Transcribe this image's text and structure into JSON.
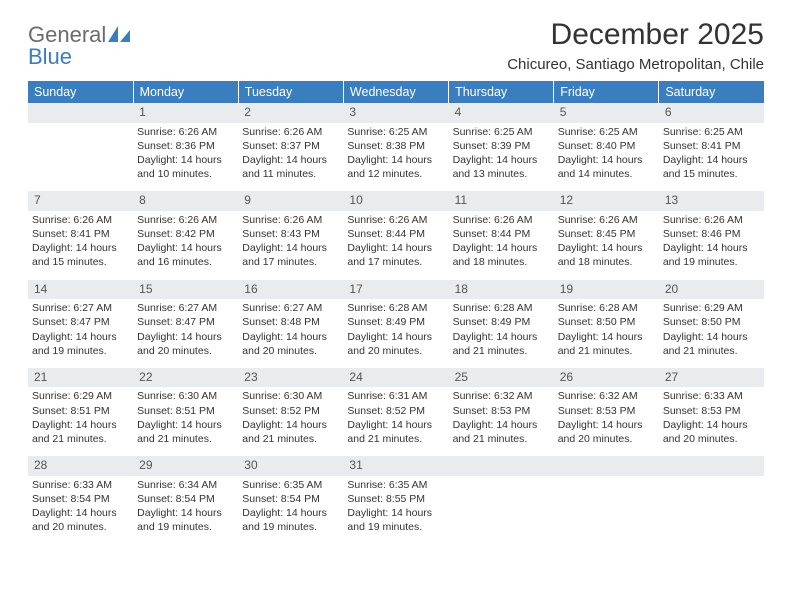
{
  "logo": {
    "part1": "General",
    "part2": "Blue"
  },
  "title": "December 2025",
  "location": "Chicureo, Santiago Metropolitan, Chile",
  "colors": {
    "header_bg": "#3a7ebf",
    "header_text": "#ffffff",
    "daynum_bg": "#e8ecef",
    "text": "#333333",
    "logo_gray": "#6b6b6b",
    "logo_blue": "#3a7ebf"
  },
  "weekdays": [
    "Sunday",
    "Monday",
    "Tuesday",
    "Wednesday",
    "Thursday",
    "Friday",
    "Saturday"
  ],
  "weeks": [
    {
      "nums": [
        "",
        "1",
        "2",
        "3",
        "4",
        "5",
        "6"
      ],
      "cells": [
        null,
        {
          "sunrise": "Sunrise: 6:26 AM",
          "sunset": "Sunset: 8:36 PM",
          "day1": "Daylight: 14 hours",
          "day2": "and 10 minutes."
        },
        {
          "sunrise": "Sunrise: 6:26 AM",
          "sunset": "Sunset: 8:37 PM",
          "day1": "Daylight: 14 hours",
          "day2": "and 11 minutes."
        },
        {
          "sunrise": "Sunrise: 6:25 AM",
          "sunset": "Sunset: 8:38 PM",
          "day1": "Daylight: 14 hours",
          "day2": "and 12 minutes."
        },
        {
          "sunrise": "Sunrise: 6:25 AM",
          "sunset": "Sunset: 8:39 PM",
          "day1": "Daylight: 14 hours",
          "day2": "and 13 minutes."
        },
        {
          "sunrise": "Sunrise: 6:25 AM",
          "sunset": "Sunset: 8:40 PM",
          "day1": "Daylight: 14 hours",
          "day2": "and 14 minutes."
        },
        {
          "sunrise": "Sunrise: 6:25 AM",
          "sunset": "Sunset: 8:41 PM",
          "day1": "Daylight: 14 hours",
          "day2": "and 15 minutes."
        }
      ]
    },
    {
      "nums": [
        "7",
        "8",
        "9",
        "10",
        "11",
        "12",
        "13"
      ],
      "cells": [
        {
          "sunrise": "Sunrise: 6:26 AM",
          "sunset": "Sunset: 8:41 PM",
          "day1": "Daylight: 14 hours",
          "day2": "and 15 minutes."
        },
        {
          "sunrise": "Sunrise: 6:26 AM",
          "sunset": "Sunset: 8:42 PM",
          "day1": "Daylight: 14 hours",
          "day2": "and 16 minutes."
        },
        {
          "sunrise": "Sunrise: 6:26 AM",
          "sunset": "Sunset: 8:43 PM",
          "day1": "Daylight: 14 hours",
          "day2": "and 17 minutes."
        },
        {
          "sunrise": "Sunrise: 6:26 AM",
          "sunset": "Sunset: 8:44 PM",
          "day1": "Daylight: 14 hours",
          "day2": "and 17 minutes."
        },
        {
          "sunrise": "Sunrise: 6:26 AM",
          "sunset": "Sunset: 8:44 PM",
          "day1": "Daylight: 14 hours",
          "day2": "and 18 minutes."
        },
        {
          "sunrise": "Sunrise: 6:26 AM",
          "sunset": "Sunset: 8:45 PM",
          "day1": "Daylight: 14 hours",
          "day2": "and 18 minutes."
        },
        {
          "sunrise": "Sunrise: 6:26 AM",
          "sunset": "Sunset: 8:46 PM",
          "day1": "Daylight: 14 hours",
          "day2": "and 19 minutes."
        }
      ]
    },
    {
      "nums": [
        "14",
        "15",
        "16",
        "17",
        "18",
        "19",
        "20"
      ],
      "cells": [
        {
          "sunrise": "Sunrise: 6:27 AM",
          "sunset": "Sunset: 8:47 PM",
          "day1": "Daylight: 14 hours",
          "day2": "and 19 minutes."
        },
        {
          "sunrise": "Sunrise: 6:27 AM",
          "sunset": "Sunset: 8:47 PM",
          "day1": "Daylight: 14 hours",
          "day2": "and 20 minutes."
        },
        {
          "sunrise": "Sunrise: 6:27 AM",
          "sunset": "Sunset: 8:48 PM",
          "day1": "Daylight: 14 hours",
          "day2": "and 20 minutes."
        },
        {
          "sunrise": "Sunrise: 6:28 AM",
          "sunset": "Sunset: 8:49 PM",
          "day1": "Daylight: 14 hours",
          "day2": "and 20 minutes."
        },
        {
          "sunrise": "Sunrise: 6:28 AM",
          "sunset": "Sunset: 8:49 PM",
          "day1": "Daylight: 14 hours",
          "day2": "and 21 minutes."
        },
        {
          "sunrise": "Sunrise: 6:28 AM",
          "sunset": "Sunset: 8:50 PM",
          "day1": "Daylight: 14 hours",
          "day2": "and 21 minutes."
        },
        {
          "sunrise": "Sunrise: 6:29 AM",
          "sunset": "Sunset: 8:50 PM",
          "day1": "Daylight: 14 hours",
          "day2": "and 21 minutes."
        }
      ]
    },
    {
      "nums": [
        "21",
        "22",
        "23",
        "24",
        "25",
        "26",
        "27"
      ],
      "cells": [
        {
          "sunrise": "Sunrise: 6:29 AM",
          "sunset": "Sunset: 8:51 PM",
          "day1": "Daylight: 14 hours",
          "day2": "and 21 minutes."
        },
        {
          "sunrise": "Sunrise: 6:30 AM",
          "sunset": "Sunset: 8:51 PM",
          "day1": "Daylight: 14 hours",
          "day2": "and 21 minutes."
        },
        {
          "sunrise": "Sunrise: 6:30 AM",
          "sunset": "Sunset: 8:52 PM",
          "day1": "Daylight: 14 hours",
          "day2": "and 21 minutes."
        },
        {
          "sunrise": "Sunrise: 6:31 AM",
          "sunset": "Sunset: 8:52 PM",
          "day1": "Daylight: 14 hours",
          "day2": "and 21 minutes."
        },
        {
          "sunrise": "Sunrise: 6:32 AM",
          "sunset": "Sunset: 8:53 PM",
          "day1": "Daylight: 14 hours",
          "day2": "and 21 minutes."
        },
        {
          "sunrise": "Sunrise: 6:32 AM",
          "sunset": "Sunset: 8:53 PM",
          "day1": "Daylight: 14 hours",
          "day2": "and 20 minutes."
        },
        {
          "sunrise": "Sunrise: 6:33 AM",
          "sunset": "Sunset: 8:53 PM",
          "day1": "Daylight: 14 hours",
          "day2": "and 20 minutes."
        }
      ]
    },
    {
      "nums": [
        "28",
        "29",
        "30",
        "31",
        "",
        "",
        ""
      ],
      "cells": [
        {
          "sunrise": "Sunrise: 6:33 AM",
          "sunset": "Sunset: 8:54 PM",
          "day1": "Daylight: 14 hours",
          "day2": "and 20 minutes."
        },
        {
          "sunrise": "Sunrise: 6:34 AM",
          "sunset": "Sunset: 8:54 PM",
          "day1": "Daylight: 14 hours",
          "day2": "and 19 minutes."
        },
        {
          "sunrise": "Sunrise: 6:35 AM",
          "sunset": "Sunset: 8:54 PM",
          "day1": "Daylight: 14 hours",
          "day2": "and 19 minutes."
        },
        {
          "sunrise": "Sunrise: 6:35 AM",
          "sunset": "Sunset: 8:55 PM",
          "day1": "Daylight: 14 hours",
          "day2": "and 19 minutes."
        },
        null,
        null,
        null
      ]
    }
  ]
}
